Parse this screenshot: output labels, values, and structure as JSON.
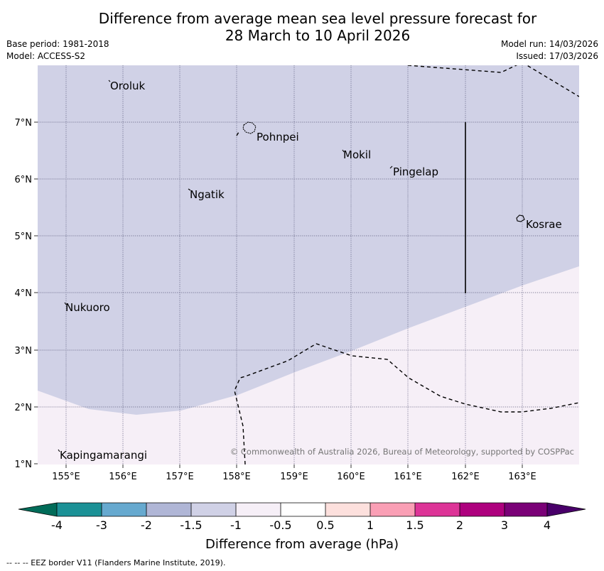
{
  "title_line1": "Difference from average mean sea level pressure forecast for",
  "title_line2": "28 March to 10 April 2026",
  "base_period": "Base period: 1981-2018",
  "model": "Model: ACCESS-S2",
  "model_run": "Model run: 14/03/2026",
  "issued": "Issued: 17/03/2026",
  "copyright": "© Commonwealth of Australia 2026, Bureau of Meteorology, supported by COSPPac",
  "colorbar_title": "Difference from average (hPa)",
  "footer": "--  --  -- EEZ border V11 (Flanders Marine Institute, 2019).",
  "lon_labels": [
    "155°E",
    "156°E",
    "157°E",
    "158°E",
    "159°E",
    "160°E",
    "161°E",
    "162°E",
    "163°E"
  ],
  "lat_labels": [
    "7°N",
    "6°N",
    "5°N",
    "4°N",
    "3°N",
    "2°N",
    "1°N"
  ],
  "places": [
    {
      "name": "Oroluk"
    },
    {
      "name": "Pohnpei"
    },
    {
      "name": "Mokil"
    },
    {
      "name": "Pingelap"
    },
    {
      "name": "Ngatik"
    },
    {
      "name": "Kosrae"
    },
    {
      "name": "Nukuoro"
    },
    {
      "name": "Kapingamarangi"
    }
  ],
  "colorbar": {
    "labels": [
      "-4",
      "-3",
      "-2",
      "-1.5",
      "-1",
      "-0.5",
      "0.5",
      "1",
      "1.5",
      "2",
      "3",
      "4"
    ],
    "colors": [
      "#1b9196",
      "#66a9cf",
      "#b0b6d6",
      "#d0d1e6",
      "#f6eff7",
      "#ffffff",
      "#fde0dd",
      "#fa9fb5",
      "#dd3497",
      "#ae017e",
      "#7a0177"
    ],
    "under_color": "#016c59",
    "over_color": "#49006a"
  },
  "fill_colors": {
    "neg1": "#d0d1e6",
    "neg05": "#f6eff7"
  }
}
